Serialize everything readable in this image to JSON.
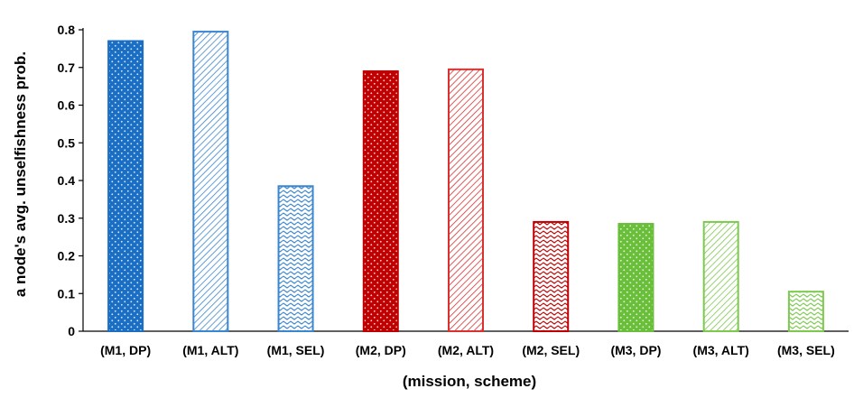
{
  "chart_data": {
    "type": "bar",
    "categories": [
      "(M1, DP)",
      "(M1, ALT)",
      "(M1, SEL)",
      "(M2, DP)",
      "(M2, ALT)",
      "(M2, SEL)",
      "(M3, DP)",
      "(M3, ALT)",
      "(M3, SEL)"
    ],
    "values": [
      0.77,
      0.795,
      0.385,
      0.69,
      0.695,
      0.29,
      0.285,
      0.29,
      0.105
    ],
    "title": "",
    "xlabel": "(mission, scheme)",
    "ylabel": "a node's avg. unselfishness prob.",
    "ylim": [
      0,
      0.8
    ],
    "yticks": [
      "0",
      "0.1",
      "0.2",
      "0.3",
      "0.4",
      "0.5",
      "0.6",
      "0.7",
      "0.8"
    ],
    "grid": false,
    "bar_styles": [
      {
        "color": "#1a6fc4",
        "pattern": "dots"
      },
      {
        "color": "#3a86d0",
        "pattern": "diagonal"
      },
      {
        "color": "#3a86d0",
        "pattern": "wave"
      },
      {
        "color": "#c00000",
        "pattern": "dots"
      },
      {
        "color": "#d93030",
        "pattern": "diagonal"
      },
      {
        "color": "#c00000",
        "pattern": "wave"
      },
      {
        "color": "#6abf3a",
        "pattern": "dots"
      },
      {
        "color": "#7cc94e",
        "pattern": "diagonal"
      },
      {
        "color": "#7cc94e",
        "pattern": "wave"
      }
    ]
  }
}
